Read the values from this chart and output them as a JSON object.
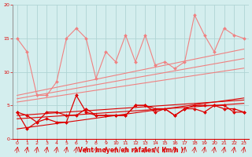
{
  "x": [
    0,
    1,
    2,
    3,
    4,
    5,
    6,
    7,
    8,
    9,
    10,
    11,
    12,
    13,
    14,
    15,
    16,
    17,
    18,
    19,
    20,
    21,
    22,
    23
  ],
  "light_jagged": [
    15.0,
    13.0,
    6.5,
    6.5,
    8.5,
    15.0,
    16.5,
    15.0,
    9.0,
    13.0,
    11.5,
    15.5,
    11.5,
    15.5,
    11.0,
    11.5,
    10.5,
    11.5,
    18.5,
    15.5,
    13.0,
    16.5,
    15.5,
    15.0
  ],
  "light_slope_start": 0,
  "light_trend1": [
    6.5,
    6.8,
    7.1,
    7.4,
    7.7,
    8.0,
    8.3,
    8.6,
    8.9,
    9.2,
    9.5,
    9.8,
    10.1,
    10.4,
    10.7,
    11.0,
    11.3,
    11.6,
    11.9,
    12.2,
    12.5,
    12.8,
    13.1,
    13.4
  ],
  "light_trend2": [
    6.0,
    6.26,
    6.52,
    6.78,
    7.04,
    7.3,
    7.56,
    7.82,
    8.08,
    8.34,
    8.6,
    8.86,
    9.12,
    9.38,
    9.64,
    9.9,
    10.16,
    10.42,
    10.68,
    10.94,
    11.2,
    11.46,
    11.72,
    11.98
  ],
  "light_trend3": [
    5.5,
    5.72,
    5.94,
    6.16,
    6.38,
    6.6,
    6.82,
    7.04,
    7.26,
    7.48,
    7.7,
    7.92,
    8.14,
    8.36,
    8.58,
    8.8,
    9.02,
    9.24,
    9.46,
    9.68,
    9.9,
    10.12,
    10.34,
    10.56
  ],
  "dark_jagged1": [
    4.0,
    3.5,
    2.5,
    4.0,
    4.0,
    3.5,
    3.5,
    4.5,
    3.5,
    3.5,
    3.5,
    3.5,
    5.0,
    5.0,
    4.0,
    4.5,
    3.5,
    4.5,
    4.5,
    4.0,
    5.0,
    5.0,
    4.0,
    4.0
  ],
  "dark_jagged2": [
    4.0,
    1.5,
    2.5,
    3.0,
    2.5,
    2.5,
    6.5,
    4.0,
    3.5,
    3.5,
    3.5,
    3.5,
    5.0,
    5.0,
    4.5,
    4.5,
    3.5,
    4.5,
    5.0,
    5.0,
    5.0,
    4.5,
    4.5,
    4.0
  ],
  "dark_trend1": [
    3.5,
    3.6,
    3.7,
    3.8,
    3.9,
    4.0,
    4.1,
    4.2,
    4.3,
    4.4,
    4.5,
    4.6,
    4.7,
    4.8,
    4.9,
    5.0,
    5.1,
    5.2,
    5.3,
    5.4,
    5.5,
    5.6,
    5.7,
    5.8
  ],
  "dark_trend2": [
    3.0,
    3.1,
    3.2,
    3.3,
    3.4,
    3.5,
    3.6,
    3.7,
    3.8,
    3.9,
    4.0,
    4.1,
    4.2,
    4.3,
    4.4,
    4.5,
    4.6,
    4.7,
    4.8,
    4.9,
    5.0,
    5.1,
    5.2,
    5.3
  ],
  "dark_trend3": [
    1.5,
    1.7,
    1.9,
    2.1,
    2.3,
    2.5,
    2.7,
    2.9,
    3.1,
    3.3,
    3.5,
    3.7,
    3.9,
    4.1,
    4.3,
    4.5,
    4.7,
    4.9,
    5.1,
    5.3,
    5.5,
    5.7,
    5.9,
    6.1
  ],
  "bg_color": "#d4eeee",
  "grid_color": "#b0d4d4",
  "lc": "#f08080",
  "dc": "#dd0000",
  "xlabel": "Vent moyen/en rafales ( km/h )",
  "xlim": [
    -0.5,
    23.5
  ],
  "ylim": [
    0,
    20
  ],
  "yticks": [
    0,
    5,
    10,
    15,
    20
  ],
  "xticks": [
    0,
    1,
    2,
    3,
    4,
    5,
    6,
    7,
    8,
    9,
    10,
    11,
    12,
    13,
    14,
    15,
    16,
    17,
    18,
    19,
    20,
    21,
    22,
    23
  ]
}
